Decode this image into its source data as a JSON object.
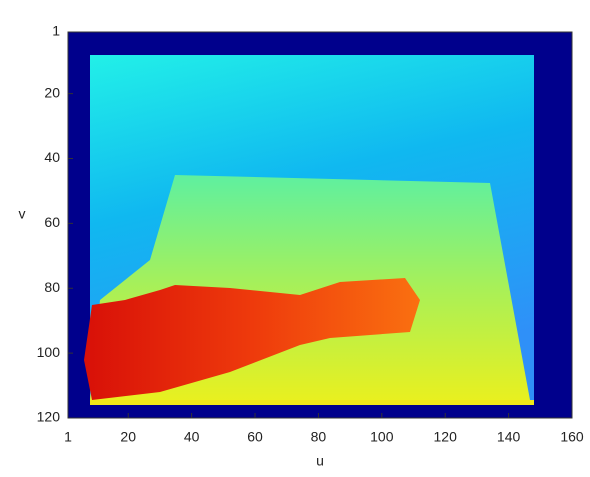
{
  "chart_data": {
    "type": "image",
    "xlabel": "u",
    "ylabel": "v",
    "xlim": [
      1,
      160
    ],
    "xticks": [
      1,
      20,
      40,
      60,
      80,
      100,
      120,
      140,
      160
    ],
    "ylim": [
      1,
      120
    ],
    "yticks": [
      1,
      20,
      40,
      60,
      80,
      100,
      120
    ],
    "y_reversed": true,
    "colormap": "jet"
  }
}
